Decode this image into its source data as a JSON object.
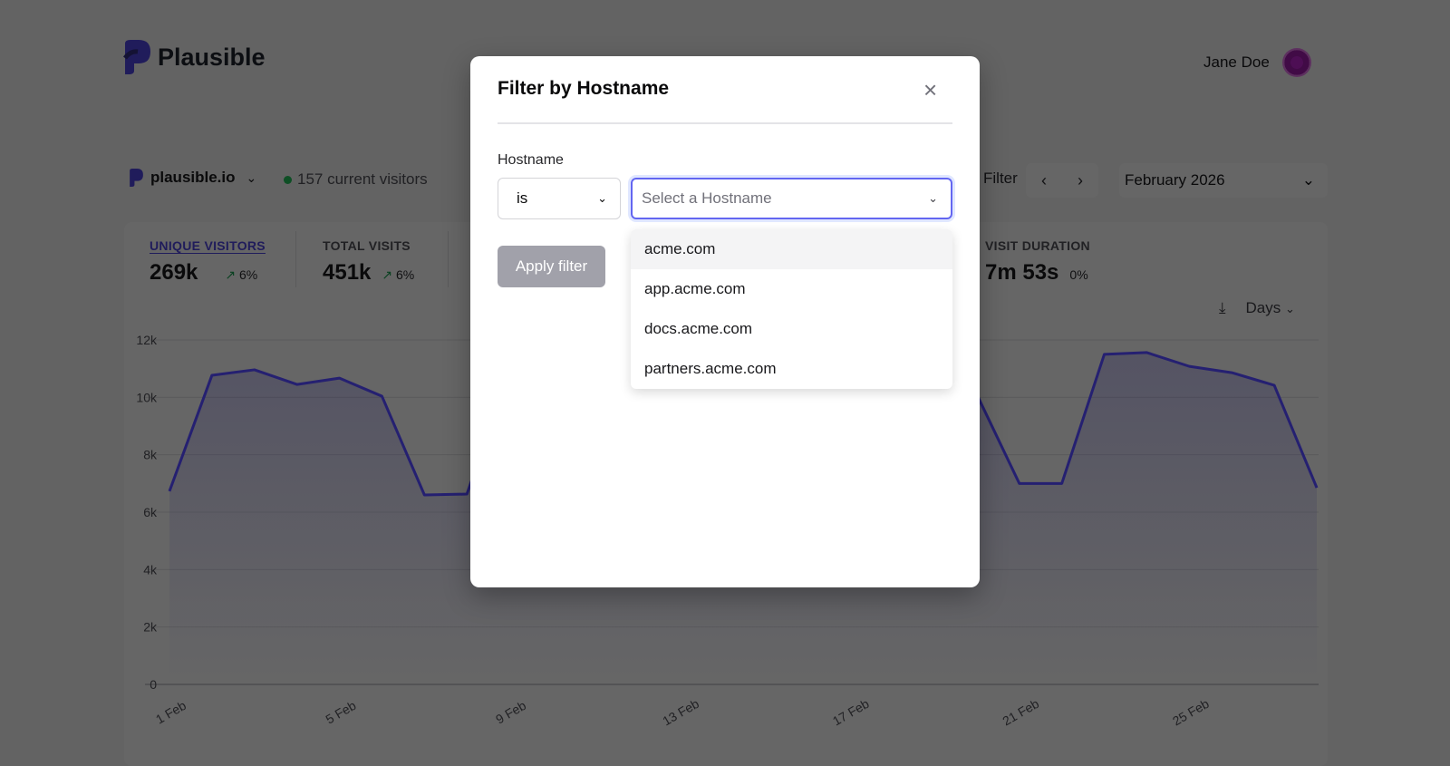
{
  "header": {
    "logo_text": "Plausible",
    "user_name": "Jane Doe"
  },
  "site": {
    "domain": "plausible.io",
    "current_visitors": "157 current visitors"
  },
  "toolbar": {
    "filter_label": "Filter",
    "period": "February 2026",
    "interval": "Days"
  },
  "stats": [
    {
      "label": "UNIQUE VISITORS",
      "value": "269k",
      "change": "6%",
      "trend": "up",
      "active": true
    },
    {
      "label": "TOTAL VISITS",
      "value": "451k",
      "change": "6%",
      "trend": "up"
    },
    {
      "label": "VISIT DURATION",
      "value": "7m 53s",
      "change": "0%"
    }
  ],
  "colors": {
    "accent": "#4f46e5",
    "live": "#22c55e",
    "trend_up": "#16a34a"
  },
  "chart_data": {
    "type": "area",
    "ylim": [
      0,
      12000
    ],
    "grid": true,
    "yticks": [
      "0",
      "2k",
      "4k",
      "6k",
      "8k",
      "10k",
      "12k"
    ],
    "xtick_labels": [
      "1 Feb",
      "5 Feb",
      "9 Feb",
      "13 Feb",
      "17 Feb",
      "21 Feb",
      "25 Feb"
    ],
    "x": [
      1,
      2,
      3,
      4,
      5,
      6,
      7,
      8,
      9,
      10,
      11,
      12,
      13,
      14,
      15,
      16,
      17,
      18,
      19,
      20,
      21,
      22,
      23,
      24,
      25,
      26,
      27,
      28
    ],
    "values": [
      6730,
      10770,
      10960,
      10450,
      10670,
      10040,
      6600,
      6630,
      10900,
      11200,
      10800,
      10900,
      10300,
      6900,
      6800,
      11000,
      11300,
      10900,
      10700,
      10100,
      7000,
      7000,
      11500,
      11560,
      11080,
      10860,
      10420,
      6850
    ]
  },
  "modal": {
    "title": "Filter by Hostname",
    "field_label": "Hostname",
    "operator": "is",
    "placeholder": "Select a Hostname",
    "apply_label": "Apply filter",
    "options": [
      "acme.com",
      "app.acme.com",
      "docs.acme.com",
      "partners.acme.com"
    ]
  }
}
